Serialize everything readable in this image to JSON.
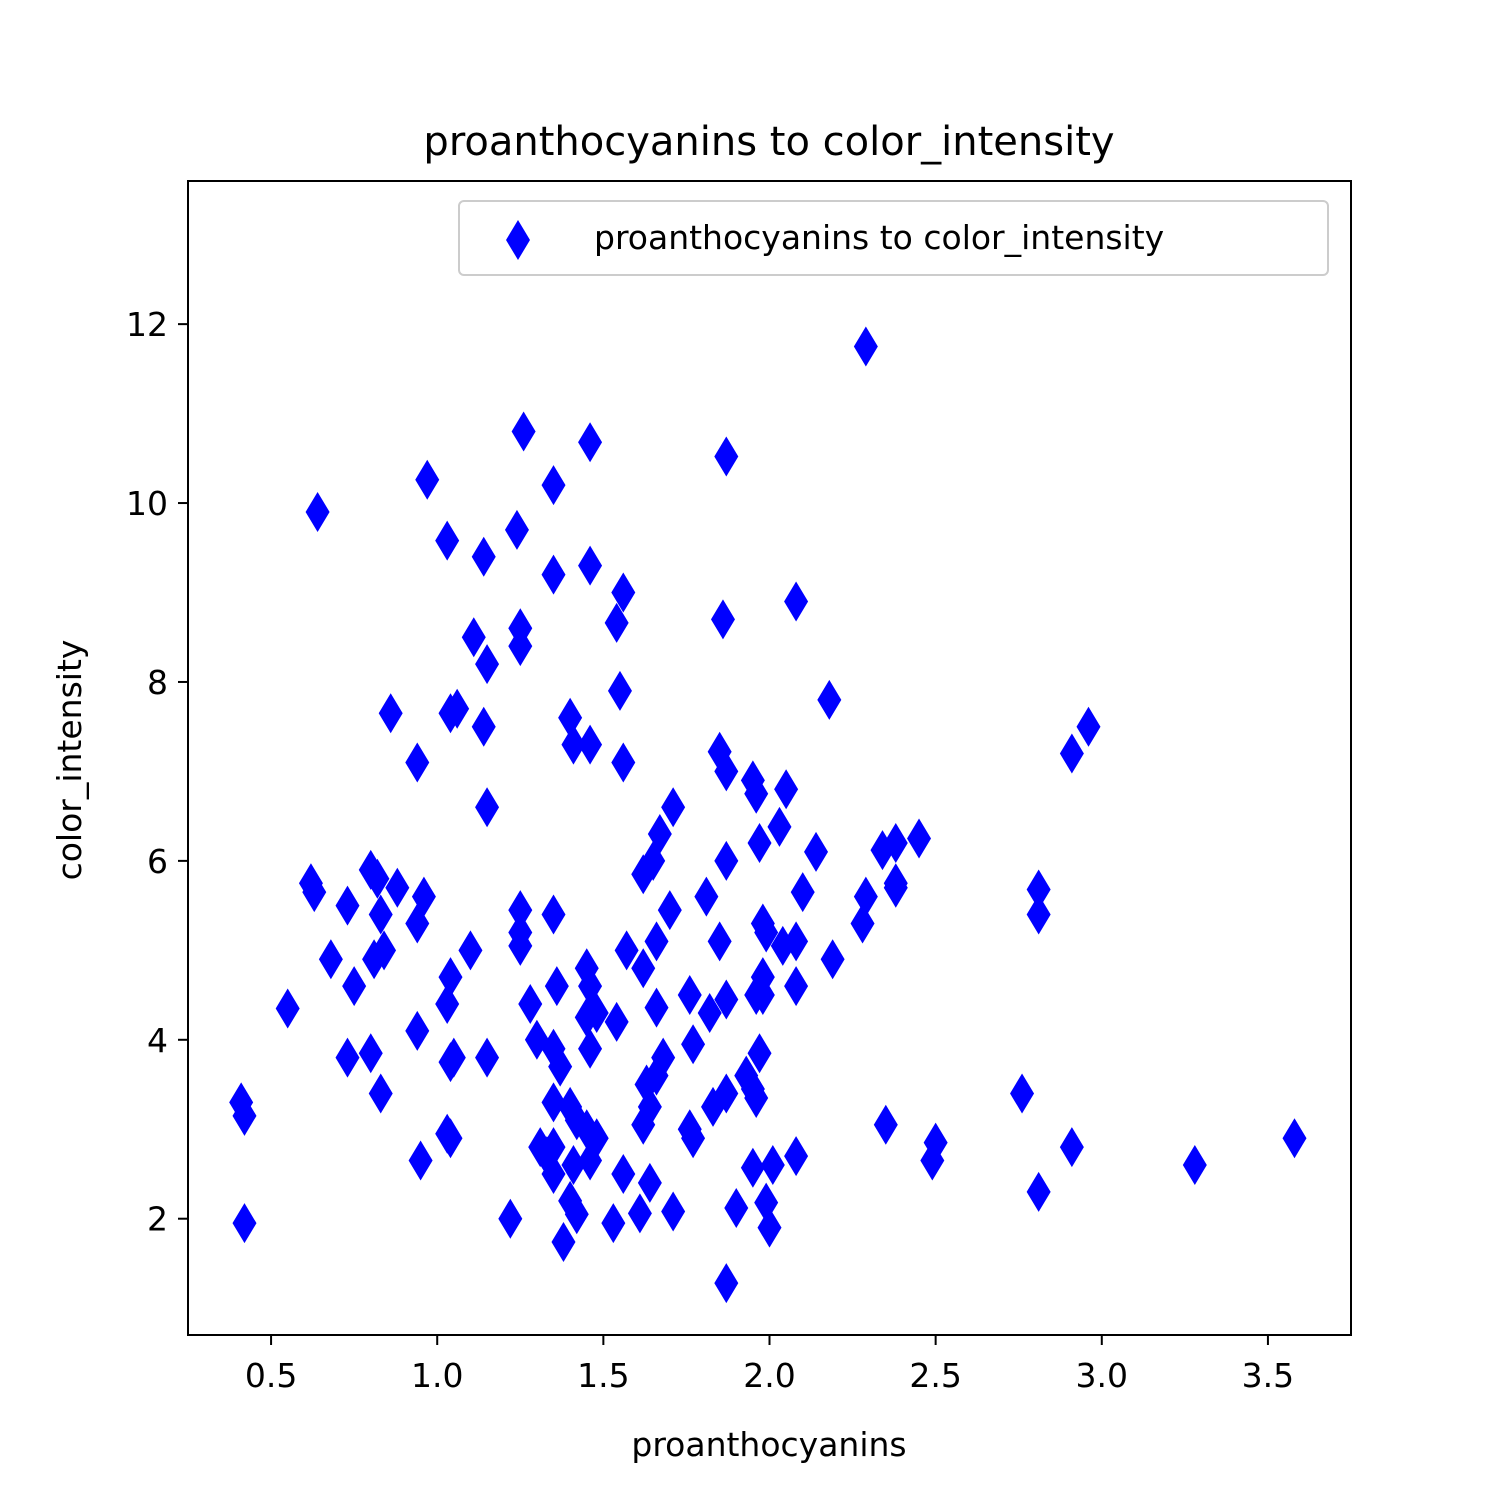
{
  "chart_data": {
    "type": "scatter",
    "title": "proanthocyanins to color_intensity",
    "xlabel": "proanthocyanins",
    "ylabel": "color_intensity",
    "xlim": [
      0.25,
      3.75
    ],
    "ylim": [
      0.7,
      13.6
    ],
    "x_ticks": [
      "0.5",
      "1.0",
      "1.5",
      "2.0",
      "2.5",
      "3.0",
      "3.5"
    ],
    "y_ticks": [
      "2",
      "4",
      "6",
      "8",
      "10",
      "12"
    ],
    "grid": false,
    "legend": {
      "position": "upper right",
      "entries": [
        "proanthocyanins to color_intensity"
      ]
    },
    "marker": "thin-diamond",
    "color": "#0000ff",
    "series": [
      {
        "name": "proanthocyanins to color_intensity",
        "points": [
          [
            0.41,
            3.3
          ],
          [
            0.42,
            3.15
          ],
          [
            0.42,
            1.95
          ],
          [
            0.55,
            4.35
          ],
          [
            0.62,
            5.75
          ],
          [
            0.63,
            5.65
          ],
          [
            0.64,
            9.9
          ],
          [
            0.68,
            4.9
          ],
          [
            0.73,
            5.5
          ],
          [
            0.75,
            4.6
          ],
          [
            0.73,
            3.8
          ],
          [
            0.8,
            5.9
          ],
          [
            0.8,
            3.85
          ],
          [
            0.82,
            5.8
          ],
          [
            0.83,
            5.4
          ],
          [
            0.81,
            4.9
          ],
          [
            0.84,
            5.0
          ],
          [
            0.83,
            3.4
          ],
          [
            0.86,
            7.65
          ],
          [
            0.88,
            5.7
          ],
          [
            0.94,
            7.1
          ],
          [
            0.94,
            5.3
          ],
          [
            0.96,
            5.6
          ],
          [
            0.94,
            4.1
          ],
          [
            0.95,
            2.65
          ],
          [
            0.97,
            10.26
          ],
          [
            1.03,
            9.58
          ],
          [
            1.04,
            7.65
          ],
          [
            1.06,
            7.7
          ],
          [
            1.04,
            4.7
          ],
          [
            1.03,
            4.4
          ],
          [
            1.04,
            3.75
          ],
          [
            1.05,
            3.8
          ],
          [
            1.03,
            2.95
          ],
          [
            1.04,
            2.9
          ],
          [
            1.1,
            5.0
          ],
          [
            1.11,
            8.5
          ],
          [
            1.14,
            9.4
          ],
          [
            1.15,
            8.2
          ],
          [
            1.14,
            7.5
          ],
          [
            1.15,
            6.6
          ],
          [
            1.15,
            3.8
          ],
          [
            1.22,
            2.0
          ],
          [
            1.24,
            9.7
          ],
          [
            1.25,
            8.6
          ],
          [
            1.25,
            8.4
          ],
          [
            1.26,
            10.8
          ],
          [
            1.25,
            5.45
          ],
          [
            1.25,
            5.2
          ],
          [
            1.25,
            5.05
          ],
          [
            1.28,
            4.4
          ],
          [
            1.3,
            4.0
          ],
          [
            1.31,
            2.8
          ],
          [
            1.33,
            2.7
          ],
          [
            1.35,
            10.2
          ],
          [
            1.35,
            9.2
          ],
          [
            1.35,
            5.4
          ],
          [
            1.36,
            4.6
          ],
          [
            1.35,
            3.9
          ],
          [
            1.37,
            3.7
          ],
          [
            1.35,
            3.3
          ],
          [
            1.35,
            2.8
          ],
          [
            1.35,
            2.5
          ],
          [
            1.38,
            1.74
          ],
          [
            1.4,
            7.6
          ],
          [
            1.41,
            7.3
          ],
          [
            1.4,
            3.25
          ],
          [
            1.42,
            3.1
          ],
          [
            1.41,
            2.6
          ],
          [
            1.4,
            2.2
          ],
          [
            1.42,
            2.05
          ],
          [
            1.45,
            4.8
          ],
          [
            1.46,
            4.6
          ],
          [
            1.46,
            9.3
          ],
          [
            1.46,
            10.68
          ],
          [
            1.46,
            7.3
          ],
          [
            1.45,
            4.25
          ],
          [
            1.46,
            3.9
          ],
          [
            1.45,
            3.0
          ],
          [
            1.46,
            2.65
          ],
          [
            1.48,
            2.9
          ],
          [
            1.48,
            4.3
          ],
          [
            1.53,
            1.95
          ],
          [
            1.54,
            8.66
          ],
          [
            1.54,
            4.2
          ],
          [
            1.55,
            7.9
          ],
          [
            1.56,
            7.1
          ],
          [
            1.56,
            9.0
          ],
          [
            1.56,
            2.5
          ],
          [
            1.57,
            5.0
          ],
          [
            1.61,
            2.06
          ],
          [
            1.62,
            5.85
          ],
          [
            1.62,
            4.8
          ],
          [
            1.62,
            3.05
          ],
          [
            1.63,
            3.5
          ],
          [
            1.64,
            3.25
          ],
          [
            1.64,
            2.4
          ],
          [
            1.65,
            6.0
          ],
          [
            1.66,
            5.1
          ],
          [
            1.66,
            4.36
          ],
          [
            1.67,
            6.3
          ],
          [
            1.66,
            3.6
          ],
          [
            1.68,
            3.8
          ],
          [
            1.71,
            6.6
          ],
          [
            1.7,
            5.45
          ],
          [
            1.71,
            2.08
          ],
          [
            1.76,
            4.5
          ],
          [
            1.77,
            3.95
          ],
          [
            1.76,
            3.0
          ],
          [
            1.77,
            2.9
          ],
          [
            1.81,
            5.6
          ],
          [
            1.82,
            4.3
          ],
          [
            1.83,
            3.25
          ],
          [
            1.85,
            7.22
          ],
          [
            1.86,
            8.7
          ],
          [
            1.87,
            10.52
          ],
          [
            1.87,
            7.0
          ],
          [
            1.87,
            6.0
          ],
          [
            1.85,
            5.1
          ],
          [
            1.87,
            4.45
          ],
          [
            1.87,
            3.4
          ],
          [
            1.87,
            1.28
          ],
          [
            1.9,
            2.12
          ],
          [
            1.93,
            3.6
          ],
          [
            1.95,
            6.9
          ],
          [
            1.96,
            6.75
          ],
          [
            1.96,
            4.5
          ],
          [
            1.95,
            3.45
          ],
          [
            1.96,
            3.35
          ],
          [
            1.95,
            2.57
          ],
          [
            1.97,
            6.2
          ],
          [
            1.97,
            3.85
          ],
          [
            1.98,
            5.3
          ],
          [
            1.98,
            4.7
          ],
          [
            1.98,
            4.5
          ],
          [
            1.99,
            5.2
          ],
          [
            1.99,
            2.18
          ],
          [
            2.0,
            1.9
          ],
          [
            2.01,
            2.6
          ],
          [
            2.03,
            6.38
          ],
          [
            2.04,
            5.05
          ],
          [
            2.05,
            6.8
          ],
          [
            2.08,
            8.9
          ],
          [
            2.08,
            5.1
          ],
          [
            2.08,
            4.6
          ],
          [
            2.08,
            2.7
          ],
          [
            2.1,
            5.65
          ],
          [
            2.14,
            6.1
          ],
          [
            2.18,
            7.8
          ],
          [
            2.19,
            4.9
          ],
          [
            2.28,
            5.3
          ],
          [
            2.29,
            5.6
          ],
          [
            2.29,
            11.75
          ],
          [
            2.34,
            6.12
          ],
          [
            2.35,
            3.05
          ],
          [
            2.38,
            5.75
          ],
          [
            2.38,
            6.2
          ],
          [
            2.38,
            5.7
          ],
          [
            2.45,
            6.25
          ],
          [
            2.49,
            2.65
          ],
          [
            2.5,
            2.85
          ],
          [
            2.76,
            3.4
          ],
          [
            2.81,
            5.68
          ],
          [
            2.81,
            5.4
          ],
          [
            2.81,
            2.3
          ],
          [
            2.91,
            7.2
          ],
          [
            2.91,
            2.8
          ],
          [
            2.96,
            7.5
          ],
          [
            3.28,
            2.6
          ],
          [
            3.58,
            2.9
          ]
        ]
      }
    ]
  }
}
